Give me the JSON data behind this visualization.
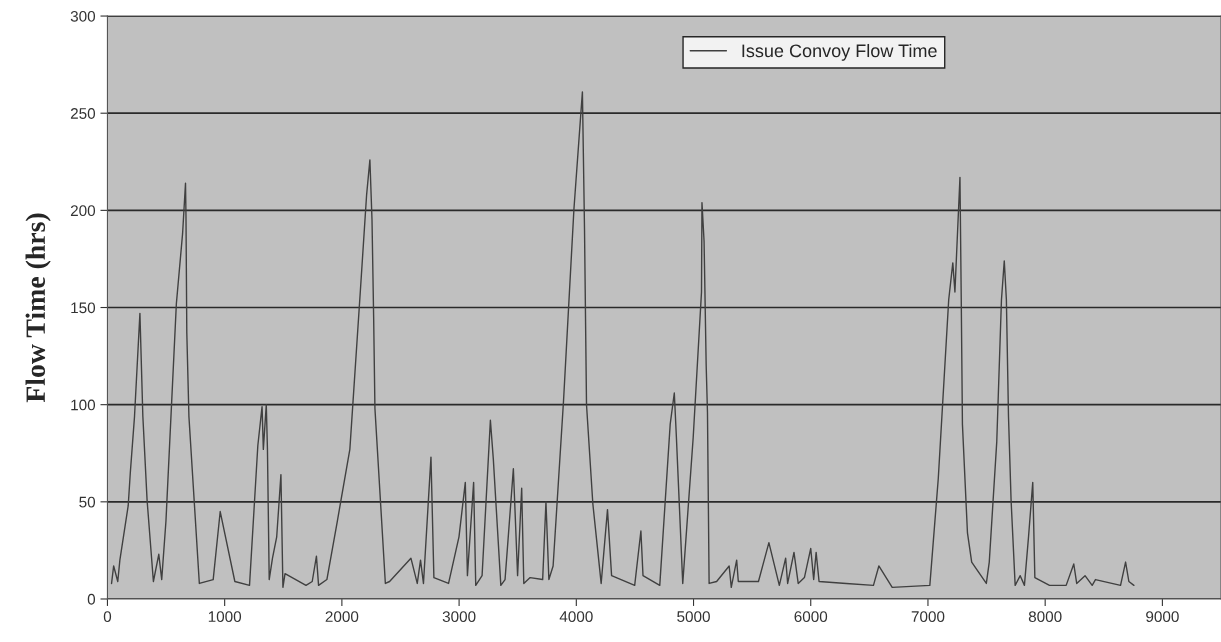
{
  "chart_data": {
    "type": "line",
    "ylabel": "Flow Time (hrs)",
    "xlim": [
      0,
      9500
    ],
    "xticks": [
      0,
      1000,
      2000,
      3000,
      4000,
      5000,
      6000,
      7000,
      8000,
      9000
    ],
    "ylim": [
      0,
      300
    ],
    "yticks": [
      0,
      50,
      100,
      150,
      200,
      250,
      300
    ],
    "grid": "y",
    "legend": "top right",
    "line_style": "solid",
    "marker": "none",
    "series": [
      {
        "name": "Issue Convoy Flow Time",
        "color": "#404040",
        "x": [
          35,
          53,
          88,
          106,
          177,
          195,
          231,
          277,
          285,
          302,
          338,
          392,
          438,
          463,
          499,
          588,
          641,
          666,
          670,
          677,
          695,
          784,
          902,
          962,
          1087,
          1212,
          1283,
          1319,
          1330,
          1355,
          1365,
          1380,
          1408,
          1444,
          1480,
          1497,
          1515,
          1694,
          1747,
          1783,
          1801,
          1872,
          1961,
          2068,
          2157,
          2211,
          2239,
          2257,
          2271,
          2282,
          2371,
          2407,
          2589,
          2643,
          2671,
          2696,
          2760,
          2785,
          2910,
          2999,
          3053,
          3071,
          3124,
          3142,
          3196,
          3267,
          3292,
          3356,
          3392,
          3463,
          3499,
          3534,
          3552,
          3606,
          3713,
          3741,
          3766,
          3802,
          3891,
          3980,
          4052,
          4070,
          4087,
          4141,
          4212,
          4266,
          4301,
          4498,
          4551,
          4569,
          4712,
          4801,
          4836,
          4854,
          4908,
          4997,
          5068,
          5072,
          5090,
          5108,
          5119,
          5133,
          5197,
          5304,
          5322,
          5368,
          5382,
          5554,
          5643,
          5732,
          5786,
          5803,
          5857,
          5893,
          5946,
          6000,
          6025,
          6046,
          6071,
          6303,
          6535,
          6581,
          6695,
          7016,
          7088,
          7177,
          7212,
          7230,
          7273,
          7284,
          7294,
          7337,
          7373,
          7498,
          7523,
          7587,
          7627,
          7651,
          7669,
          7687,
          7709,
          7744,
          7787,
          7823,
          7858,
          7894,
          7912,
          8037,
          8179,
          8244,
          8269,
          8340,
          8401,
          8429,
          8643,
          8686,
          8714,
          8757
        ],
        "values": [
          8,
          17,
          9,
          20,
          48,
          65,
          94,
          147,
          130,
          94,
          51,
          9,
          23,
          10,
          40,
          152,
          188,
          214,
          197,
          137,
          94,
          8,
          10,
          45,
          9,
          7,
          79,
          99,
          77,
          100,
          77,
          10,
          21,
          32,
          64,
          6,
          13,
          7,
          9,
          22,
          7,
          10,
          40,
          77,
          158,
          208,
          226,
          195,
          145,
          98,
          8,
          9,
          21,
          8,
          20,
          8,
          73,
          11,
          8,
          32,
          60,
          12,
          60,
          7,
          12,
          92,
          72,
          7,
          10,
          67,
          12,
          57,
          8,
          11,
          10,
          50,
          10,
          17,
          102,
          201,
          261,
          190,
          100,
          49,
          8,
          46,
          12,
          7,
          35,
          12,
          7,
          90,
          106,
          83,
          8,
          83,
          158,
          204,
          184,
          120,
          96,
          8,
          9,
          17,
          6,
          20,
          9,
          9,
          29,
          7,
          21,
          8,
          24,
          8,
          11,
          26,
          10,
          24,
          9,
          8,
          7,
          17,
          6,
          7,
          62,
          154,
          173,
          158,
          217,
          154,
          90,
          34,
          19,
          8,
          19,
          81,
          154,
          174,
          154,
          94,
          51,
          7,
          12,
          7,
          32,
          60,
          11,
          7,
          7,
          18,
          8,
          12,
          7,
          10,
          7,
          19,
          9,
          7
        ]
      }
    ]
  }
}
